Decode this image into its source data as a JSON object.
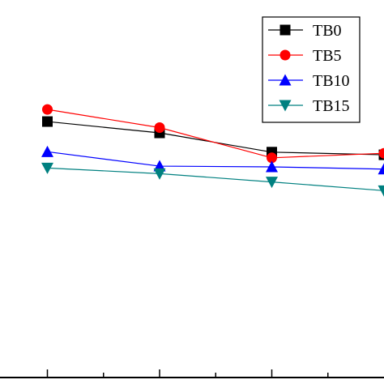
{
  "chart_data": {
    "type": "line",
    "x": [
      1,
      2,
      3,
      4
    ],
    "xlim": [
      0.0,
      4.0
    ],
    "ylim": [
      0,
      10
    ],
    "grid": false,
    "legend_position": "top-right",
    "series": [
      {
        "name": "TB0",
        "color": "#000000",
        "marker": "square",
        "values": [
          6.78,
          6.48,
          5.97,
          5.9
        ]
      },
      {
        "name": "TB5",
        "color": "#ff0000",
        "marker": "circle",
        "values": [
          7.1,
          6.62,
          5.82,
          5.94
        ]
      },
      {
        "name": "TB10",
        "color": "#0000ff",
        "marker": "triangle-up",
        "values": [
          5.98,
          5.6,
          5.58,
          5.52
        ]
      },
      {
        "name": "TB15",
        "color": "#008080",
        "marker": "triangle-down",
        "values": [
          5.55,
          5.4,
          5.18,
          4.95
        ]
      }
    ]
  }
}
